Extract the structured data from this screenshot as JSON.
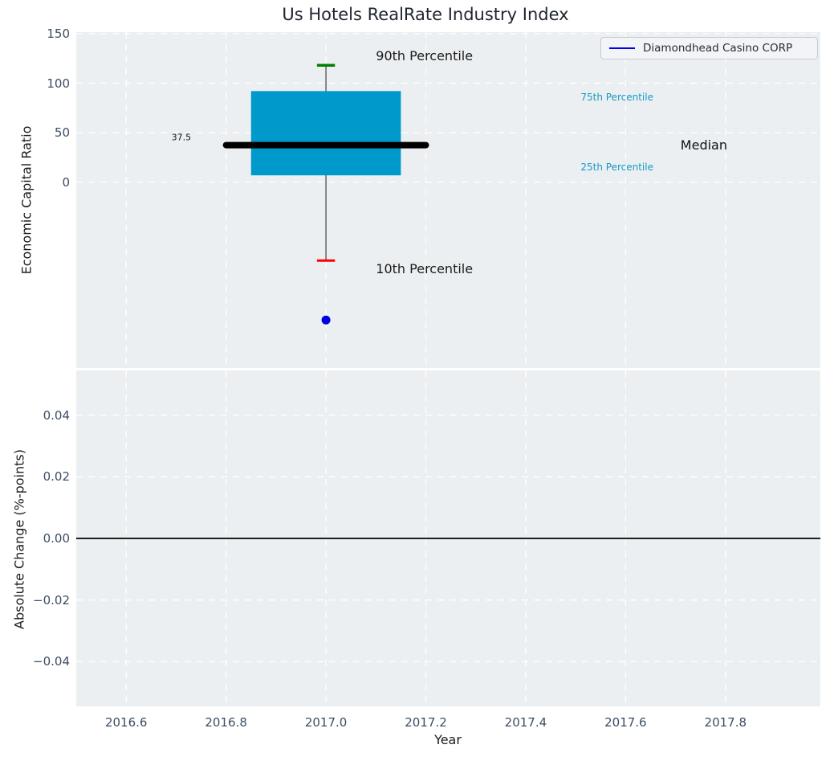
{
  "style": {
    "plot_bg": "#eceff1",
    "grid_color": "#ffffff",
    "tick_color": "#3d4d63",
    "text_color": "#1c1c1c",
    "accent_blue": "#0000ee",
    "box_cyan": "#0099cc",
    "cap_green": "#008000",
    "cap_red": "#ff0000"
  },
  "chart_data": [
    {
      "type": "box",
      "title": "Us Hotels RealRate Industry Index",
      "ylabel": "Economic Capital Ratio",
      "xlim": [
        2016.5,
        2017.99
      ],
      "ylim": [
        -187.5,
        151.5
      ],
      "yticks": [
        0,
        50,
        100,
        150
      ],
      "ytick_labels": [
        "0",
        "50",
        "100",
        "150"
      ],
      "grid": "white dashed, on",
      "legend": {
        "position": "upper right",
        "entries": [
          {
            "label": "Diamondhead Casino CORP",
            "color": "#0000ee"
          }
        ]
      },
      "box": {
        "x": 2017.0,
        "p10": -79,
        "p25": 7,
        "median": 37.5,
        "p75": 92,
        "p90": 118,
        "box_span": [
          2016.85,
          2017.15
        ],
        "median_span": [
          2016.8,
          2017.2
        ],
        "cap_halfwidth": 0.018,
        "box_color": "#0099cc",
        "median_color": "#000000",
        "median_width": 8,
        "p90_cap_color": "#008000",
        "p10_cap_color": "#ff0000",
        "whisker_color": "#5a5a5a"
      },
      "company_point": {
        "x": 2017.0,
        "y": -139,
        "color": "#0000ee",
        "radius": 5.5
      },
      "annotations": [
        {
          "text": "90th Percentile",
          "x": 2017.1,
          "y": 127,
          "color": "#1a1a1a",
          "size": 16,
          "anchor": "start"
        },
        {
          "text": "10th Percentile",
          "x": 2017.1,
          "y": -88,
          "color": "#1a1a1a",
          "size": 16,
          "anchor": "start"
        },
        {
          "text": "75th Percentile",
          "x": 2017.51,
          "y": 86,
          "color": "#1799c7",
          "size": 12,
          "anchor": "start"
        },
        {
          "text": "25th Percentile",
          "x": 2017.51,
          "y": 15,
          "color": "#1799c7",
          "size": 12,
          "anchor": "start"
        },
        {
          "text": "Median",
          "x": 2017.71,
          "y": 37.5,
          "color": "#111111",
          "size": 16,
          "anchor": "start"
        },
        {
          "text": "37.5",
          "x": 2016.73,
          "y": 45,
          "color": "#111111",
          "size": 11,
          "anchor": "end"
        }
      ]
    },
    {
      "type": "line",
      "ylabel": "Absolute Change (%-points)",
      "xlabel": "Year",
      "xlim": [
        2016.5,
        2017.99
      ],
      "ylim": [
        -0.0545,
        0.0545
      ],
      "xticks": [
        2016.6,
        2016.8,
        2017.0,
        2017.2,
        2017.4,
        2017.6,
        2017.8
      ],
      "xtick_labels": [
        "2016.6",
        "2016.8",
        "2017.0",
        "2017.2",
        "2017.4",
        "2017.6",
        "2017.8"
      ],
      "yticks": [
        -0.04,
        -0.02,
        0.0,
        0.02,
        0.04
      ],
      "ytick_labels": [
        "−0.04",
        "−0.02",
        "0.00",
        "0.02",
        "0.04"
      ],
      "zero_line": {
        "y": 0.0,
        "color": "#000000"
      },
      "grid": "white dashed, on",
      "series": []
    }
  ]
}
